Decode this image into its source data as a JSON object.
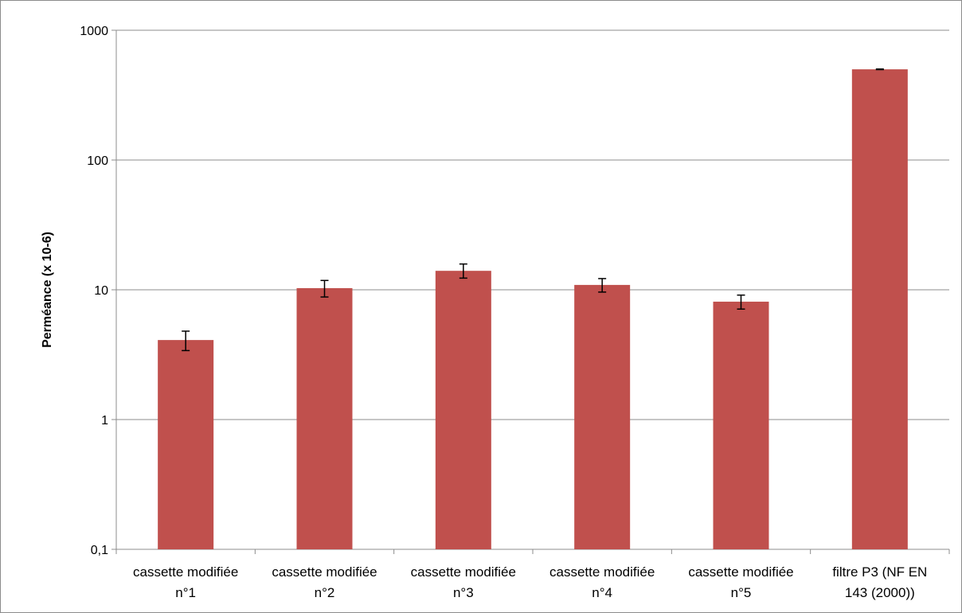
{
  "chart_data": {
    "type": "bar",
    "title": "",
    "xlabel": "",
    "ylabel": "Perméance (x 10-6)",
    "yscale": "log",
    "ylim": [
      0.1,
      1000
    ],
    "yticks": [
      {
        "value": 1000,
        "label": "1000"
      },
      {
        "value": 100,
        "label": "100"
      },
      {
        "value": 10,
        "label": "10"
      },
      {
        "value": 1,
        "label": "1"
      },
      {
        "value": 0.1,
        "label": "0,1"
      }
    ],
    "grid": true,
    "legend": "none",
    "bar_color": "#c0504d",
    "categories": [
      [
        "cassette modifiée",
        "n°1"
      ],
      [
        "cassette modifiée",
        "n°2"
      ],
      [
        "cassette modifiée",
        "n°3"
      ],
      [
        "cassette modifiée",
        "n°4"
      ],
      [
        "cassette modifiée",
        "n°5"
      ],
      [
        "filtre P3 (NF EN",
        "143 (2000))"
      ]
    ],
    "series": [
      {
        "values": [
          4.1,
          10.3,
          14.0,
          10.9,
          8.1,
          500
        ],
        "error_low": [
          3.4,
          8.8,
          12.3,
          9.6,
          7.1,
          497
        ],
        "error_high": [
          4.8,
          11.8,
          15.8,
          12.2,
          9.1,
          503
        ]
      }
    ]
  }
}
